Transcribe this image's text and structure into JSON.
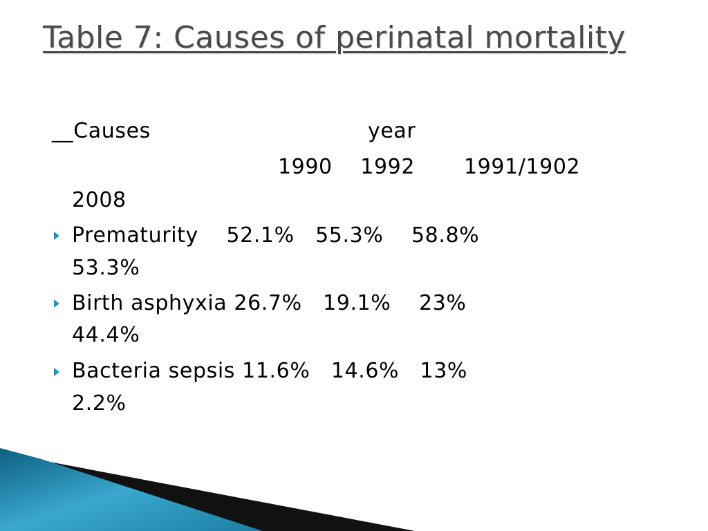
{
  "slide": {
    "title": "Table 7: Causes of perinatal mortality",
    "header_row": {
      "causes_label": "__Causes",
      "year_label": "year"
    },
    "years_row": {
      "years_line": "1990    1992       1991/1902",
      "years_wrap": "2008"
    },
    "rows": [
      {
        "line": "Prematurity    52.1%   55.3%    58.8%",
        "wrap": "53.3%"
      },
      {
        "line": "Birth asphyxia 26.7%   19.1%    23%",
        "wrap": "44.4%"
      },
      {
        "line": "Bacteria sepsis 11.6%   14.6%   13%",
        "wrap": "2.2%"
      }
    ]
  },
  "colors": {
    "title": "#4a4a4a",
    "bullet": "#2a8fb5",
    "accent_dark": "#0d5f80",
    "accent_light": "#bfe3ef"
  }
}
